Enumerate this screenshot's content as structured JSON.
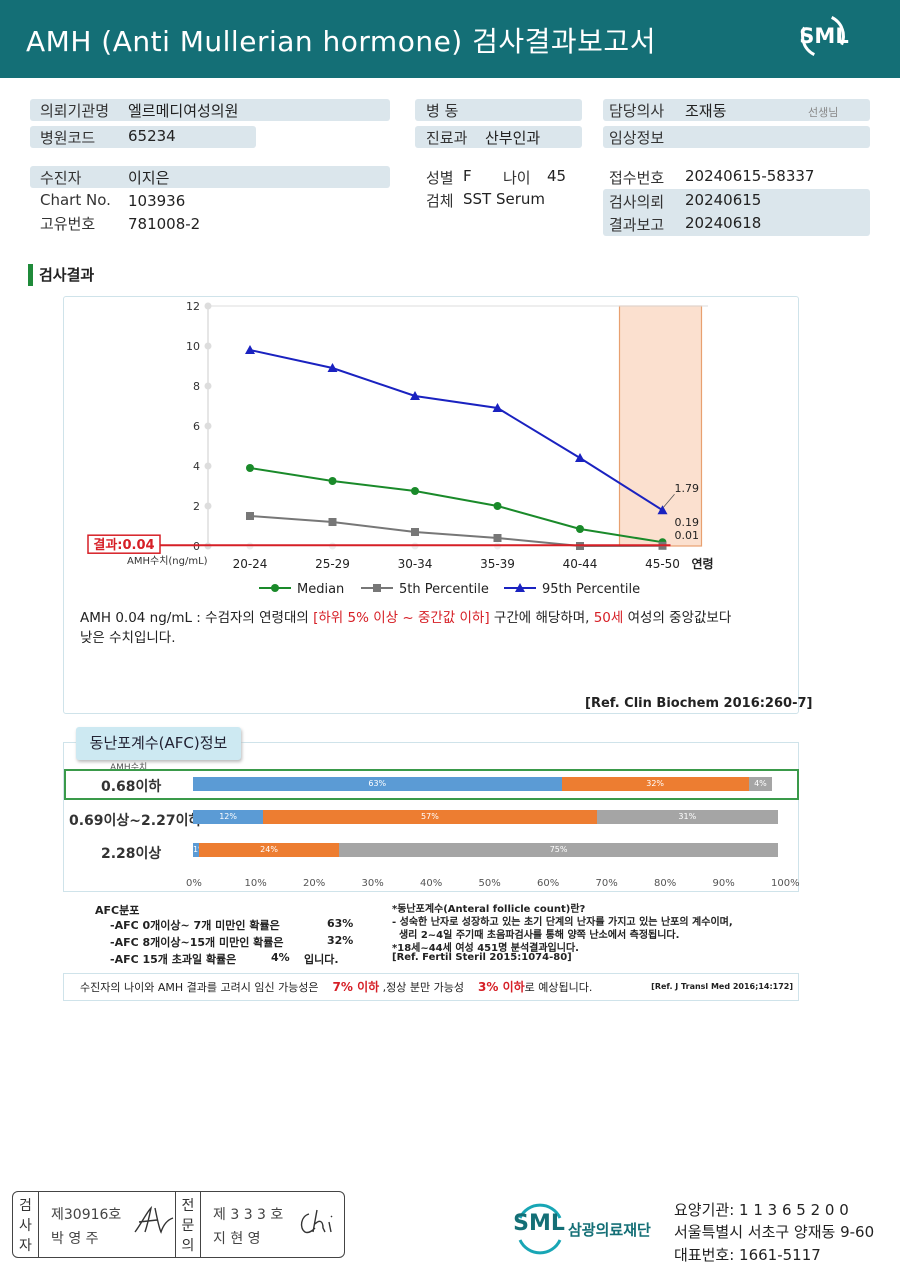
{
  "header": {
    "title": "AMH (Anti Mullerian hormone) 검사결과보고서",
    "logo_text": "SML"
  },
  "patient": {
    "institution_label": "의뢰기관명",
    "institution": "엘르메디여성의원",
    "code_label": "병원코드",
    "code": "65234",
    "ward_label": "병 동",
    "ward": "",
    "dept_label": "진료과",
    "dept": "산부인과",
    "doctor_label": "담당의사",
    "doctor": "조재동",
    "doctor_suffix": "선생님",
    "clinical_label": "임상정보",
    "clinical": "",
    "name_label": "수진자",
    "name": "이지은",
    "chart_label": "Chart No.",
    "chart": "103936",
    "id_label": "고유번호",
    "id": "781008-2",
    "sex_label": "성별",
    "sex": "F",
    "age_label": "나이",
    "age": "45",
    "specimen_label": "검체",
    "specimen": "SST Serum",
    "receipt_label": "접수번호",
    "receipt": "20240615-58337",
    "request_label": "검사의뢰",
    "request": "20240615",
    "report_label": "결과보고",
    "report": "20240618"
  },
  "section_title": "검사결과",
  "chart_data": {
    "type": "line",
    "x": [
      "20-24",
      "25-29",
      "30-34",
      "35-39",
      "40-44",
      "45-50"
    ],
    "xlabel": "연령",
    "ylabel": "AMH수치(ng/mL)",
    "ylim": [
      0,
      12
    ],
    "yticks": [
      0,
      2,
      4,
      6,
      8,
      10,
      12
    ],
    "highlight_category": "45-50",
    "series": [
      {
        "name": "Median",
        "values": [
          3.9,
          3.25,
          2.75,
          2.0,
          0.85,
          0.19
        ],
        "color": "#1a8a2a",
        "marker": "circle"
      },
      {
        "name": "5th Percentile",
        "values": [
          1.5,
          1.2,
          0.7,
          0.4,
          0.0,
          0.01
        ],
        "color": "#777777",
        "marker": "square"
      },
      {
        "name": "95th Percentile",
        "values": [
          9.8,
          8.9,
          7.5,
          6.9,
          4.4,
          1.79
        ],
        "color": "#1a22c0",
        "marker": "triangle"
      }
    ],
    "point_labels": [
      "1.79",
      "0.19",
      "0.01"
    ],
    "result": {
      "label": "결과:0.04",
      "value": 0.04,
      "color": "#d61f26"
    }
  },
  "interpretation": {
    "prefix": "AMH  0.04 ng/mL : 수검자의 연령대의 ",
    "range": "[하위 5% 이상 ~ 중간값 이하]",
    "middle": " 구간에 해당하며, ",
    "age": "50세",
    "suffix": " 여성의 중앙값보다",
    "line2": "낮은 수치입니다.",
    "ref": "[Ref. Clin Biochem 2016:260-7]"
  },
  "afc": {
    "tab": "동난포계수(AFC)정보",
    "amh_header": "AMH수치",
    "rows": [
      {
        "label": "0.68이하",
        "segments": [
          63,
          32,
          4
        ]
      },
      {
        "label": "0.69이상~2.27이하",
        "segments": [
          12,
          57,
          31
        ]
      },
      {
        "label": "2.28이상",
        "segments": [
          1,
          24,
          75
        ]
      }
    ],
    "segment_colors": [
      "#5b9bd5",
      "#ed7d31",
      "#a5a5a5"
    ],
    "x_ticks": [
      "0%",
      "10%",
      "20%",
      "30%",
      "40%",
      "50%",
      "60%",
      "70%",
      "80%",
      "90%",
      "100%"
    ],
    "dist_title": "AFC분포",
    "dist": [
      {
        "text": "-AFC  0개이상~ 7개 미만인 확률은",
        "pct": "63%",
        "tail": ""
      },
      {
        "text": "-AFC  8개이상~15개 미만인 확률은",
        "pct": "32%",
        "tail": ""
      },
      {
        "text": "-AFC  15개 초과일 확률은",
        "pct": "4%",
        "tail": "입니다."
      }
    ],
    "note_title": "*동난포계수(Anteral follicle count)란?",
    "note_lines": [
      "- 성숙한 난자로 성장하고 있는 초기 단계의 난자를 가지고 있는 난포의 계수이며,",
      "  생리 2~4일 주기때 초음파검사를 통해 양쪽 난소에서 측정됩니다.",
      "*18세~44세 여성 451명 분석결과입니다.",
      "[Ref. Fertil Steril 2015:1074-80]"
    ]
  },
  "pregnancy": {
    "prefix": "수진자의  나이와 AMH 결과를 고려시 임신 가능성은",
    "pct1": "7% 이하",
    "middle": " ,정상 분만 가능성",
    "pct2": "3% 이하",
    "suffix": "로 예상됩니다.",
    "ref": "[Ref. J Transl Med 2016;14:172]"
  },
  "signatures": {
    "inspector_label": "검사자",
    "inspector_no": "제30916호",
    "inspector_name": "박  영  주",
    "specialist_label": "전문의",
    "specialist_no": "제 3 3 3 호",
    "specialist_name": "지  현  영"
  },
  "footer": {
    "brand": "삼광의료재단",
    "logo_text": "SML",
    "institution_code": "요양기관: 1 1 3 6 5 2 0 0",
    "address": "서울특별시 서초구 양재동 9-60",
    "phone": "대표번호: 1661-5117"
  },
  "colors": {
    "header_bg": "#146f76",
    "label_bar": "#dbe6ec",
    "highlight": "#d61f26"
  }
}
